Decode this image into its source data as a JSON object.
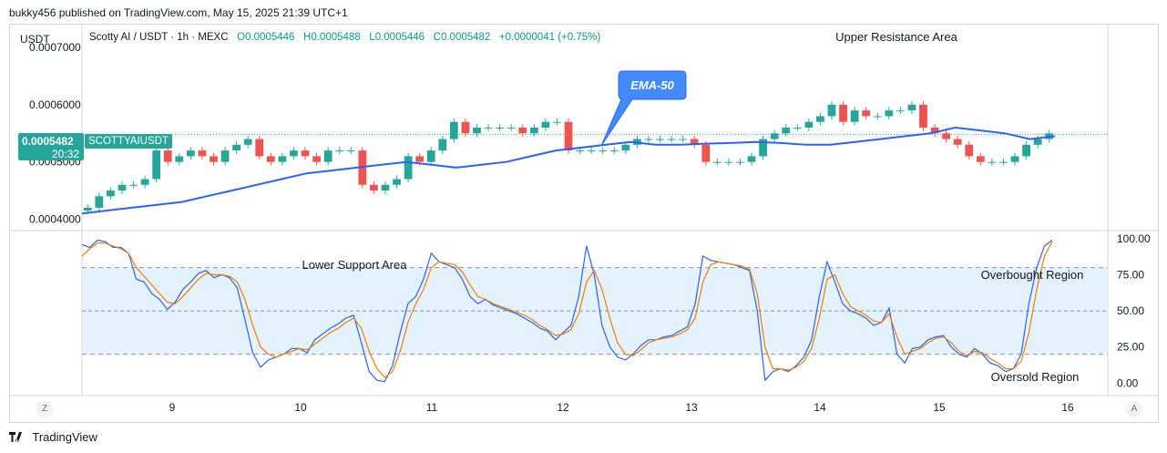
{
  "header": {
    "published_line": "bukky456 published on TradingView.com, May 15, 2025 21:39 UTC+1"
  },
  "symbol_info": {
    "currency": "USDT",
    "title": "Scotty AI / USDT · 1h · MEXC",
    "open": "O0.0005446",
    "high": "H0.0005488",
    "low": "L0.0005446",
    "close": "C0.0005482",
    "change": "+0.0000041 (+0.75%)"
  },
  "price_tag": {
    "value": "0.0005482",
    "symbol": "SCOTTYAIUSDT",
    "timer": "20:32"
  },
  "annotations": {
    "upper_resistance": "Upper Resistance Area",
    "ema_callout": "EMA-50",
    "lower_support": "Lower Support Area",
    "overbought": "Overbought Region",
    "oversold": "Oversold Region"
  },
  "axis_buttons": {
    "left": "Z",
    "right": "A"
  },
  "footer": {
    "brand": "TradingView"
  },
  "colors": {
    "bull": "#26a69a",
    "bear": "#ef5350",
    "ema": "#2962ff",
    "stoch_k": "#2962ff",
    "stoch_d": "#f57c00",
    "stoch_band": "#e3f2fd"
  },
  "chart_data": [
    {
      "type": "candlestick",
      "interval": "1h",
      "price_ticks": [
        "0.0007000",
        "0.0006000",
        "0.0005000",
        "0.0004000"
      ],
      "ylim": [
        0.00038,
        0.00074
      ],
      "x_ticks": [
        "9",
        "10",
        "11",
        "12",
        "13",
        "14",
        "15",
        "16"
      ],
      "close_series_approx": [
        0.00042,
        0.00044,
        0.00045,
        0.00046,
        0.00046,
        0.00047,
        0.00052,
        0.0005,
        0.00051,
        0.00052,
        0.00051,
        0.0005,
        0.00052,
        0.00053,
        0.00054,
        0.00051,
        0.0005,
        0.00051,
        0.00052,
        0.00051,
        0.0005,
        0.00052,
        0.00052,
        0.00052,
        0.00046,
        0.00045,
        0.00046,
        0.00047,
        0.00051,
        0.0005,
        0.00052,
        0.00054,
        0.00057,
        0.00055,
        0.00056,
        0.00056,
        0.00056,
        0.00056,
        0.00055,
        0.00056,
        0.00057,
        0.00057,
        0.00052,
        0.00052,
        0.00052,
        0.00052,
        0.00052,
        0.00053,
        0.00054,
        0.00054,
        0.00054,
        0.00054,
        0.00054,
        0.00053,
        0.0005,
        0.0005,
        0.0005,
        0.0005,
        0.00051,
        0.00054,
        0.00055,
        0.00056,
        0.00056,
        0.00057,
        0.00058,
        0.0006,
        0.00057,
        0.00059,
        0.00058,
        0.00058,
        0.00059,
        0.00059,
        0.0006,
        0.00056,
        0.00055,
        0.00054,
        0.00053,
        0.00051,
        0.0005,
        0.0005,
        0.0005,
        0.00051,
        0.00053,
        0.00054,
        0.00055
      ],
      "ema_50_approx": [
        0.00041,
        0.000415,
        0.00042,
        0.000425,
        0.00043,
        0.00044,
        0.00045,
        0.00046,
        0.00047,
        0.00048,
        0.000485,
        0.00049,
        0.000495,
        0.0005,
        0.000495,
        0.00049,
        0.000495,
        0.0005,
        0.00051,
        0.00052,
        0.000525,
        0.00053,
        0.000535,
        0.00053,
        0.00053,
        0.000532,
        0.000533,
        0.000535,
        0.000533,
        0.00053,
        0.00053,
        0.000535,
        0.00054,
        0.000545,
        0.00055,
        0.00056,
        0.000555,
        0.00055,
        0.00054,
        0.000545
      ]
    },
    {
      "type": "line",
      "indicator": "Stochastic",
      "yticks": [
        "100.00",
        "75.00",
        "50.00",
        "25.00",
        "0.00"
      ],
      "ylim": [
        -8,
        105
      ],
      "bands": [
        20,
        80
      ],
      "series": [
        {
          "values": [
            96,
            94,
            99,
            98,
            94,
            94,
            90,
            72,
            70,
            62,
            58,
            51,
            56,
            65,
            70,
            76,
            78,
            73,
            75,
            73,
            66,
            44,
            21,
            11,
            16,
            18,
            20,
            24,
            24,
            21,
            30,
            34,
            38,
            41,
            45,
            47,
            28,
            8,
            2,
            1,
            12,
            35,
            55,
            60,
            72,
            90,
            84,
            82,
            80,
            72,
            60,
            55,
            58,
            54,
            52,
            50,
            48,
            45,
            42,
            38,
            36,
            30,
            35,
            40,
            60,
            95,
            75,
            40,
            25,
            18,
            16,
            20,
            26,
            30,
            30,
            32,
            33,
            36,
            39,
            55,
            88,
            85,
            84,
            83,
            82,
            80,
            78,
            50,
            2,
            8,
            10,
            8,
            12,
            18,
            30,
            60,
            84,
            70,
            55,
            50,
            48,
            45,
            40,
            42,
            52,
            20,
            14,
            24,
            25,
            30,
            32,
            33,
            25,
            20,
            18,
            24,
            20,
            14,
            12,
            8,
            10,
            20,
            55,
            80,
            95,
            99
          ]
        },
        {
          "values": [
            88,
            93,
            97,
            97,
            95,
            93,
            90,
            80,
            74,
            68,
            62,
            56,
            55,
            60,
            66,
            72,
            76,
            75,
            75,
            74,
            70,
            58,
            40,
            25,
            20,
            18,
            20,
            22,
            24,
            23,
            27,
            31,
            35,
            38,
            42,
            45,
            38,
            22,
            10,
            4,
            8,
            22,
            42,
            55,
            65,
            80,
            84,
            83,
            82,
            77,
            68,
            60,
            58,
            55,
            53,
            51,
            49,
            47,
            44,
            40,
            37,
            33,
            34,
            37,
            48,
            70,
            78,
            65,
            45,
            28,
            20,
            19,
            23,
            28,
            30,
            31,
            32,
            34,
            37,
            45,
            70,
            82,
            84,
            83,
            82,
            81,
            79,
            62,
            25,
            10,
            10,
            9,
            11,
            15,
            24,
            45,
            72,
            75,
            62,
            53,
            50,
            47,
            43,
            42,
            48,
            32,
            20,
            22,
            24,
            28,
            31,
            32,
            28,
            22,
            19,
            22,
            21,
            17,
            14,
            10,
            10,
            15,
            35,
            65,
            88,
            98
          ]
        }
      ]
    }
  ]
}
